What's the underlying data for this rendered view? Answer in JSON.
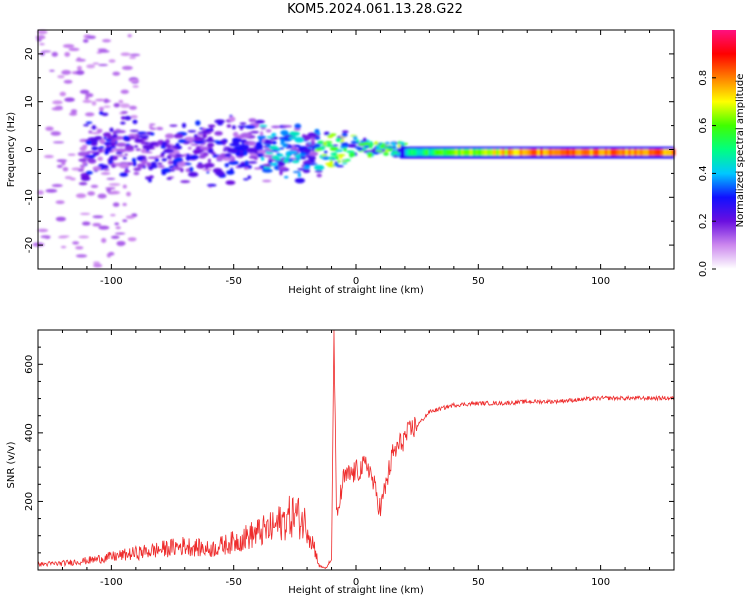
{
  "title": "KOM5.2024.061.13.28.G22",
  "colors": {
    "snr_line": "#ee2b2b",
    "axis": "#000000"
  },
  "chart_data": [
    {
      "type": "heatmap",
      "xlabel": "Height of straight line (km)",
      "ylabel": "Frequency (Hz)",
      "xlim": [
        -130,
        130
      ],
      "ylim": [
        -25,
        25
      ],
      "xticks": [
        -100,
        -50,
        0,
        50,
        100
      ],
      "yticks": [
        -20,
        -10,
        0,
        10,
        20
      ],
      "colorbar": {
        "label": "Normalized spectral amplitude",
        "ticks": [
          "0.0",
          "0.2",
          "0.4",
          "0.6",
          "0.8"
        ],
        "range": [
          0,
          1
        ],
        "colormap": [
          "#ffffff",
          "#cc88ee",
          "#6a0fe0",
          "#1010ff",
          "#00c8ff",
          "#00ff80",
          "#40ff00",
          "#ffff00",
          "#ff8000",
          "#ff0000",
          "#ff1080"
        ]
      },
      "trend": "Dense band centred near 0 Hz: scattered, weak purple/blue patches below 0 km (spread about ±8 Hz), an erratic transition from -15 to 20 km, then a narrow strong green-yellow-red band at about -1 Hz from 20 km to 130 km"
    },
    {
      "type": "line",
      "xlabel": "Height of straight line (km)",
      "ylabel": "SNR (v/v)",
      "xlim": [
        -130,
        130
      ],
      "ylim": [
        0,
        700
      ],
      "xticks": [
        -100,
        -50,
        0,
        50,
        100
      ],
      "yticks": [
        200,
        400,
        600
      ],
      "series": [
        {
          "x": [
            -130,
            -120,
            -110,
            -100,
            -90,
            -80,
            -70,
            -60,
            -50,
            -40,
            -35,
            -30,
            -25,
            -20,
            -17,
            -15,
            -12,
            -10,
            -9,
            -8,
            -5,
            0,
            5,
            10,
            15,
            20,
            25,
            30,
            40,
            50,
            60,
            70,
            80,
            90,
            100,
            110,
            120,
            130
          ],
          "y": [
            15,
            18,
            25,
            35,
            45,
            55,
            65,
            55,
            75,
            100,
            110,
            130,
            150,
            120,
            60,
            10,
            5,
            30,
            700,
            140,
            260,
            280,
            300,
            170,
            330,
            380,
            420,
            460,
            480,
            485,
            485,
            490,
            490,
            495,
            500,
            500,
            500,
            500
          ]
        }
      ]
    }
  ]
}
